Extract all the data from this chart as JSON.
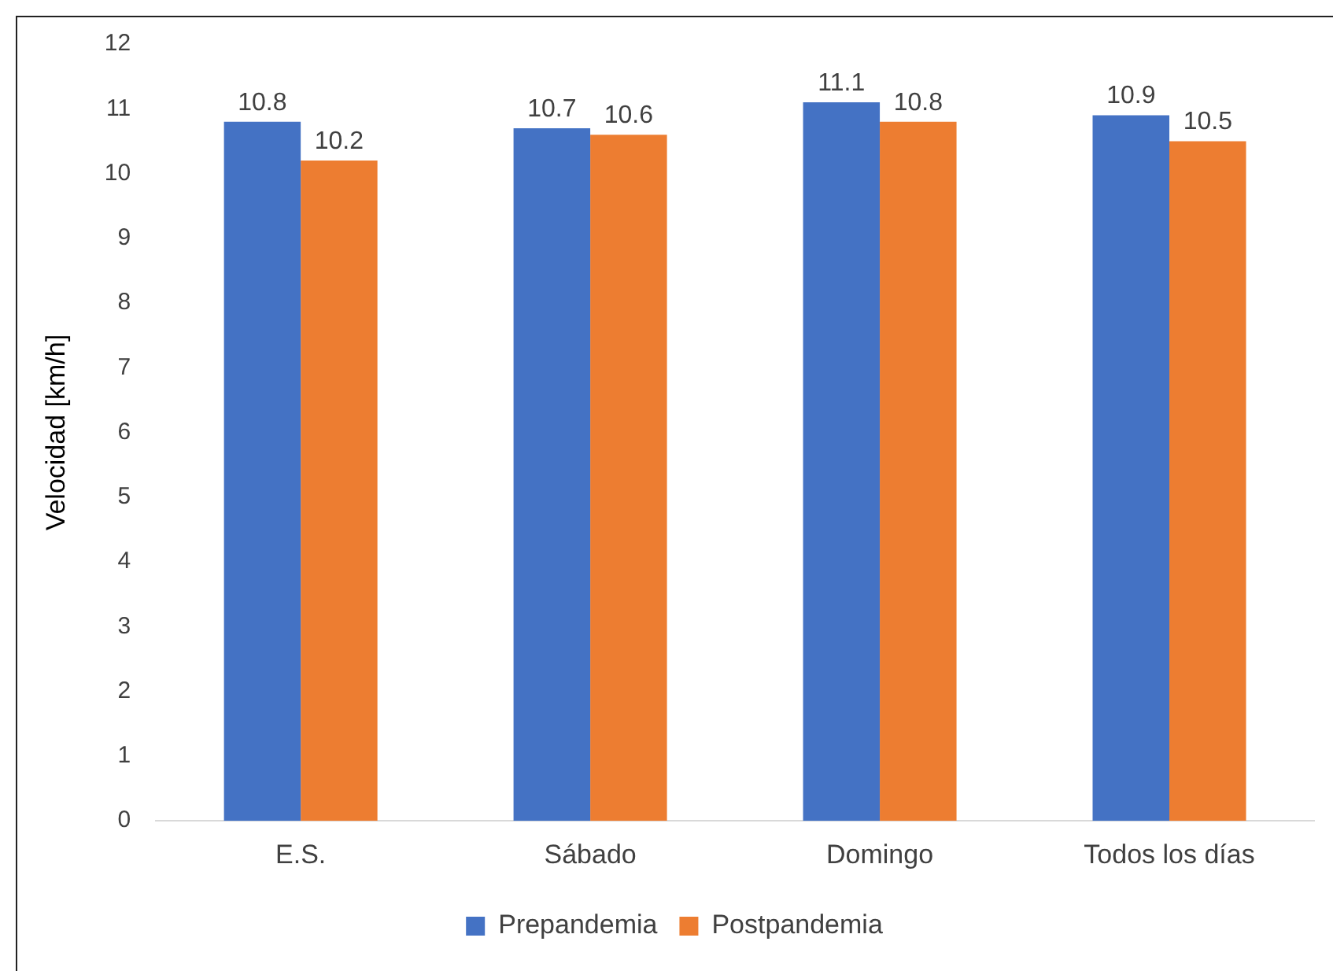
{
  "chart_data": {
    "type": "bar",
    "ylabel": "Velocidad [km/h]",
    "categories": [
      "E.S.",
      "Sábado",
      "Domingo",
      "Todos los días"
    ],
    "series": [
      {
        "name": "Prepandemia",
        "color": "#4472c4",
        "values": [
          10.8,
          10.7,
          11.1,
          10.9
        ]
      },
      {
        "name": "Postpandemia",
        "color": "#ed7d31",
        "values": [
          10.2,
          10.6,
          10.8,
          10.5
        ]
      }
    ],
    "ylim": [
      0,
      12
    ],
    "yticks": [
      0,
      1,
      2,
      3,
      4,
      5,
      6,
      7,
      8,
      9,
      10,
      11,
      12
    ],
    "grid": false,
    "legend": "bottom",
    "data_labels": true
  }
}
